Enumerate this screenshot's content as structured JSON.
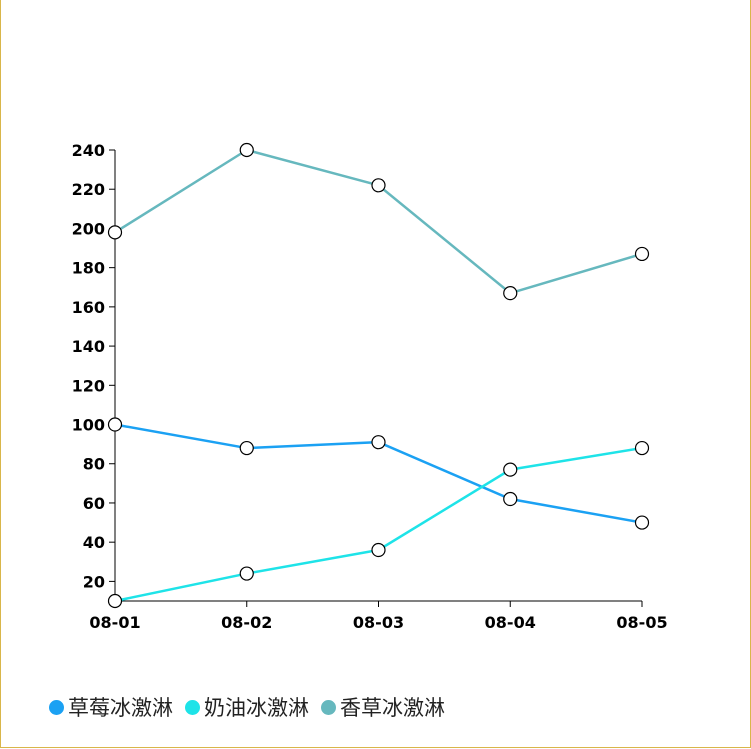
{
  "chart_data": {
    "type": "line",
    "categories": [
      "08-01",
      "08-02",
      "08-03",
      "08-04",
      "08-05"
    ],
    "series": [
      {
        "name": "草莓冰激淋",
        "color": "#1ba1f3",
        "values": [
          100,
          88,
          91,
          62,
          50
        ]
      },
      {
        "name": "奶油冰激淋",
        "color": "#1ee3e8",
        "values": [
          10,
          24,
          36,
          77,
          88
        ]
      },
      {
        "name": "香草冰激淋",
        "color": "#66b8be",
        "values": [
          198,
          240,
          222,
          167,
          187
        ]
      }
    ],
    "yticks": [
      20,
      40,
      60,
      80,
      100,
      120,
      140,
      160,
      180,
      200,
      220,
      240
    ],
    "ylim": [
      10,
      240
    ],
    "title": "",
    "xlabel": "",
    "ylabel": "",
    "grid": false,
    "legend_position": "bottom-left"
  }
}
